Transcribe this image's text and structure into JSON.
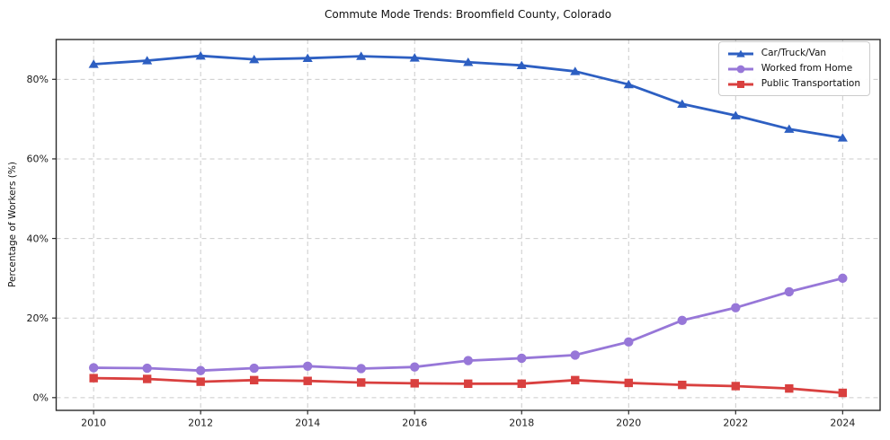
{
  "figure": {
    "title": "Commute Mode Trends: Broomfield County, Colorado",
    "ylabel": "Percentage of Workers (%)"
  },
  "chart_data": {
    "type": "line",
    "title": "Commute Mode Trends: Broomfield County, Colorado",
    "xlabel": "",
    "ylabel": "Percentage of Workers (%)",
    "grid": true,
    "grid_style": "dashed",
    "legend_position": "upper right",
    "xlim": [
      2009.3,
      2024.7
    ],
    "ylim": [
      -3.2,
      90
    ],
    "x": [
      2010,
      2011,
      2012,
      2013,
      2014,
      2015,
      2016,
      2017,
      2018,
      2019,
      2020,
      2021,
      2022,
      2023,
      2024
    ],
    "x_ticks": [
      2010,
      2012,
      2014,
      2016,
      2018,
      2020,
      2022,
      2024
    ],
    "x_tick_labels": [
      "2010",
      "2012",
      "2014",
      "2016",
      "2018",
      "2020",
      "2022",
      "2024"
    ],
    "y_ticks": [
      0,
      20,
      40,
      60,
      80
    ],
    "y_tick_labels": [
      "0%",
      "20%",
      "40%",
      "60%",
      "80%"
    ],
    "series": [
      {
        "name": "Car/Truck/Van",
        "color": "#2d5fc2",
        "marker": "triangle",
        "values": [
          83.8,
          84.7,
          85.9,
          85.0,
          85.3,
          85.8,
          85.4,
          84.3,
          83.5,
          82.0,
          78.7,
          73.8,
          70.9,
          67.5,
          65.3
        ]
      },
      {
        "name": "Worked from Home",
        "color": "#9777d8",
        "marker": "circle",
        "values": [
          7.5,
          7.4,
          6.8,
          7.4,
          7.9,
          7.3,
          7.7,
          9.3,
          9.9,
          10.7,
          14.0,
          19.4,
          22.6,
          26.6,
          30.0
        ]
      },
      {
        "name": "Public Transportation",
        "color": "#d9403f",
        "marker": "square",
        "values": [
          4.9,
          4.7,
          4.0,
          4.4,
          4.2,
          3.8,
          3.6,
          3.5,
          3.5,
          4.4,
          3.7,
          3.2,
          2.9,
          2.3,
          1.2
        ]
      }
    ]
  }
}
